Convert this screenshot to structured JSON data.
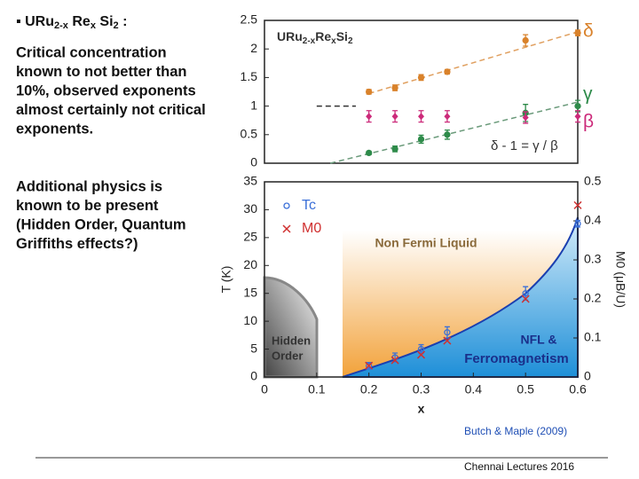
{
  "slide": {
    "heading": [
      "URu",
      "2-x",
      " Re",
      "x",
      " Si",
      "2",
      " :"
    ],
    "paragraph_1": [
      "Critical concentration",
      "known to not better than",
      "10%, observed exponents",
      "almost certainly not critical",
      "exponents."
    ],
    "paragraph_2": [
      "Additional physics is",
      "known to be present",
      "(Hidden Order, Quantum",
      "Griffiths effects?)"
    ],
    "citation": "Butch & Maple (2009)",
    "footer": "Chennai Lectures 2016"
  },
  "chart_data": [
    {
      "type": "scatter",
      "label": [
        "URu",
        "2-x",
        "Re",
        "x",
        "Si",
        "2"
      ],
      "annotation": "δ - 1 = γ / β",
      "xlim": [
        0,
        0.6
      ],
      "ylim": [
        0,
        2.5
      ],
      "yticks": [
        0,
        0.5,
        1,
        1.5,
        2,
        2.5
      ],
      "series": [
        {
          "name": "δ",
          "color": "#d9822b",
          "marker": "circle",
          "x": [
            0.2,
            0.25,
            0.3,
            0.35,
            0.5,
            0.6
          ],
          "values": [
            1.25,
            1.32,
            1.5,
            1.6,
            2.15,
            2.28
          ],
          "errors": [
            0.04,
            0.05,
            0.05,
            0.04,
            0.1,
            0.05
          ]
        },
        {
          "name": "γ",
          "color": "#2e8b4a",
          "marker": "circle",
          "x": [
            0.2,
            0.25,
            0.3,
            0.35,
            0.5,
            0.6
          ],
          "values": [
            0.18,
            0.25,
            0.42,
            0.5,
            0.88,
            1.0
          ],
          "errors": [
            0.03,
            0.05,
            0.07,
            0.08,
            0.15,
            0.1
          ]
        },
        {
          "name": "β",
          "color": "#cc2a7a",
          "marker": "diamond",
          "x": [
            0.2,
            0.25,
            0.3,
            0.35,
            0.5,
            0.6
          ],
          "values": [
            0.82,
            0.82,
            0.82,
            0.82,
            0.8,
            0.82
          ],
          "errors": [
            0.1,
            0.1,
            0.1,
            0.1,
            0.1,
            0.1
          ]
        }
      ],
      "fits": [
        {
          "color": "#e0a060",
          "x": [
            0.2,
            0.6
          ],
          "values": [
            1.22,
            2.3
          ]
        },
        {
          "color": "#6a9a7a",
          "x": [
            0.126,
            0.6
          ],
          "values": [
            0,
            1.07
          ]
        },
        {
          "color": "#333333",
          "x": [
            0.1,
            0.175
          ],
          "values": [
            1,
            1
          ]
        }
      ]
    },
    {
      "type": "scatter",
      "xlabel": "x",
      "ylabel": "T (K)",
      "y2label": "M0 (μB/U)",
      "xlim": [
        0,
        0.6
      ],
      "xticks": [
        0,
        0.1,
        0.2,
        0.3,
        0.4,
        0.5,
        0.6
      ],
      "ylim": [
        0,
        35
      ],
      "yticks": [
        0,
        5,
        10,
        15,
        20,
        25,
        30,
        35
      ],
      "y2lim": [
        0,
        0.5
      ],
      "y2ticks": [
        0,
        0.1,
        0.2,
        0.3,
        0.4,
        0.5
      ],
      "annotations": [
        "Non Fermi Liquid",
        "Hidden",
        "Order",
        "NFL &",
        "Ferromagnetism"
      ],
      "series": [
        {
          "name": "Tc",
          "color": "#3a6fd8",
          "marker": "circle",
          "x": [
            0.2,
            0.25,
            0.3,
            0.35,
            0.5,
            0.6
          ],
          "values": [
            2,
            3.5,
            5,
            8,
            15,
            27.5
          ],
          "errors": [
            0.6,
            0.8,
            0.8,
            1,
            1.2,
            0.6
          ]
        },
        {
          "name": "M0",
          "color": "#d03030",
          "marker": "cross",
          "axis": "y2",
          "x": [
            0.2,
            0.25,
            0.3,
            0.35,
            0.5,
            0.6
          ],
          "values": [
            0.029,
            0.043,
            0.057,
            0.093,
            0.2,
            0.44
          ]
        }
      ]
    }
  ]
}
